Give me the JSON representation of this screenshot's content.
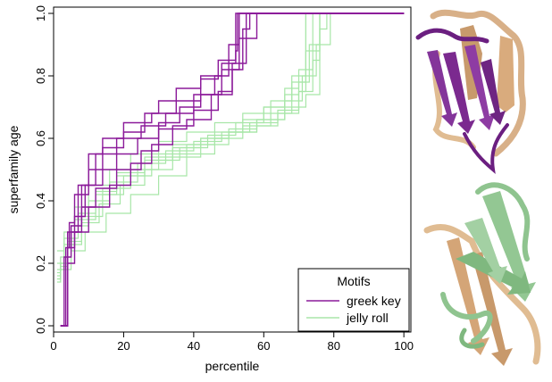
{
  "chart_data": {
    "type": "line",
    "step": true,
    "xlabel": "percentile",
    "ylabel": "superfamily age",
    "xlim": [
      0,
      102
    ],
    "ylim": [
      -0.02,
      1.02
    ],
    "x_ticks": [
      0,
      20,
      40,
      60,
      80,
      100
    ],
    "y_ticks": [
      "0.0",
      "0.2",
      "0.4",
      "0.6",
      "0.8",
      "1.0"
    ],
    "grid": false,
    "legend": {
      "title": "Motifs",
      "placement": "bottom-right",
      "entries": [
        {
          "label": "greek key",
          "color": "#8b1a9a"
        },
        {
          "label": "jelly roll",
          "color": "#a8e6a8"
        }
      ]
    },
    "series": [
      {
        "group": "greek key",
        "color": "#8b1a9a",
        "x": [
          2,
          4,
          4.5,
          6,
          10,
          14,
          20,
          28,
          35,
          42,
          47,
          52,
          52.5,
          100
        ],
        "y": [
          0.0,
          0.25,
          0.33,
          0.42,
          0.55,
          0.6,
          0.65,
          0.68,
          0.72,
          0.79,
          0.85,
          0.88,
          1.0,
          1.0
        ]
      },
      {
        "group": "greek key",
        "color": "#8b1a9a",
        "x": [
          2,
          3,
          5,
          8,
          12,
          18,
          25,
          32,
          40,
          46,
          50,
          53,
          100
        ],
        "y": [
          0.0,
          0.22,
          0.3,
          0.45,
          0.55,
          0.6,
          0.64,
          0.68,
          0.74,
          0.8,
          0.9,
          1.0,
          1.0
        ]
      },
      {
        "group": "greek key",
        "color": "#8b1a9a",
        "x": [
          2,
          4,
          6,
          10,
          16,
          22,
          28,
          34,
          40,
          47,
          51,
          54,
          56,
          100
        ],
        "y": [
          0.0,
          0.2,
          0.3,
          0.38,
          0.45,
          0.52,
          0.58,
          0.64,
          0.69,
          0.75,
          0.82,
          0.95,
          1.0,
          1.0
        ]
      },
      {
        "group": "greek key",
        "color": "#8b1a9a",
        "x": [
          2,
          3.5,
          5,
          8,
          12,
          18,
          25,
          30,
          38,
          45,
          51,
          55,
          100
        ],
        "y": [
          0.0,
          0.25,
          0.32,
          0.38,
          0.44,
          0.5,
          0.56,
          0.63,
          0.66,
          0.74,
          0.84,
          1.0,
          1.0
        ]
      },
      {
        "group": "greek key",
        "color": "#8b1a9a",
        "x": [
          2,
          4,
          7,
          10,
          14,
          20,
          26,
          30,
          35,
          42,
          48,
          52,
          100
        ],
        "y": [
          0.0,
          0.3,
          0.45,
          0.5,
          0.57,
          0.62,
          0.68,
          0.72,
          0.76,
          0.8,
          0.84,
          1.0,
          1.0
        ]
      },
      {
        "group": "greek key",
        "color": "#8b1a9a",
        "x": [
          2,
          4,
          6,
          9,
          14,
          18,
          24,
          30,
          36,
          42,
          48,
          53,
          58,
          76,
          100
        ],
        "y": [
          0.0,
          0.25,
          0.35,
          0.45,
          0.5,
          0.55,
          0.6,
          0.65,
          0.7,
          0.74,
          0.82,
          0.92,
          1.0,
          1.0,
          1.0
        ]
      },
      {
        "group": "jelly roll",
        "color": "#a8e6a8",
        "x": [
          1,
          2,
          4,
          8,
          14,
          22,
          30,
          38,
          46,
          54,
          60,
          66,
          70,
          73,
          76,
          100
        ],
        "y": [
          0.15,
          0.2,
          0.3,
          0.38,
          0.44,
          0.5,
          0.55,
          0.58,
          0.62,
          0.66,
          0.7,
          0.74,
          0.78,
          0.9,
          1.0,
          1.0
        ]
      },
      {
        "group": "jelly roll",
        "color": "#a8e6a8",
        "x": [
          1,
          2,
          5,
          10,
          16,
          24,
          32,
          40,
          48,
          56,
          64,
          70,
          74,
          76,
          78,
          100
        ],
        "y": [
          0.17,
          0.22,
          0.32,
          0.4,
          0.46,
          0.52,
          0.56,
          0.59,
          0.62,
          0.65,
          0.69,
          0.75,
          0.85,
          0.95,
          1.0,
          1.0
        ]
      },
      {
        "group": "jelly roll",
        "color": "#a8e6a8",
        "x": [
          1,
          3,
          6,
          12,
          18,
          26,
          34,
          42,
          50,
          58,
          64,
          68,
          72,
          100
        ],
        "y": [
          0.2,
          0.26,
          0.34,
          0.42,
          0.48,
          0.54,
          0.58,
          0.6,
          0.62,
          0.64,
          0.68,
          0.8,
          1.0,
          1.0
        ]
      },
      {
        "group": "jelly roll",
        "color": "#a8e6a8",
        "x": [
          1,
          2,
          4,
          8,
          14,
          20,
          28,
          36,
          44,
          52,
          60,
          66,
          70,
          74,
          100
        ],
        "y": [
          0.14,
          0.19,
          0.26,
          0.35,
          0.42,
          0.48,
          0.53,
          0.57,
          0.61,
          0.65,
          0.7,
          0.76,
          0.82,
          1.0,
          1.0
        ]
      },
      {
        "group": "jelly roll",
        "color": "#a8e6a8",
        "x": [
          1,
          3,
          6,
          10,
          16,
          22,
          30,
          38,
          46,
          54,
          62,
          68,
          72,
          76,
          100
        ],
        "y": [
          0.24,
          0.3,
          0.38,
          0.45,
          0.5,
          0.55,
          0.59,
          0.62,
          0.65,
          0.68,
          0.72,
          0.78,
          0.88,
          1.0,
          1.0
        ]
      },
      {
        "group": "jelly roll",
        "color": "#a8e6a8",
        "x": [
          1,
          2,
          5,
          9,
          15,
          22,
          30,
          38,
          46,
          54,
          62,
          70,
          72,
          100
        ],
        "y": [
          0.15,
          0.18,
          0.24,
          0.3,
          0.36,
          0.42,
          0.48,
          0.55,
          0.6,
          0.64,
          0.68,
          0.75,
          1.0,
          1.0
        ]
      },
      {
        "group": "jelly roll",
        "color": "#a8e6a8",
        "x": [
          1,
          3,
          7,
          12,
          18,
          26,
          34,
          42,
          50,
          58,
          66,
          72,
          76,
          100
        ],
        "y": [
          0.18,
          0.28,
          0.36,
          0.43,
          0.49,
          0.53,
          0.57,
          0.6,
          0.63,
          0.66,
          0.7,
          0.74,
          1.0,
          1.0
        ]
      },
      {
        "group": "jelly roll",
        "color": "#a8e6a8",
        "x": [
          1,
          2,
          4,
          8,
          13,
          19,
          26,
          34,
          42,
          50,
          58,
          66,
          71,
          75,
          79,
          100
        ],
        "y": [
          0.16,
          0.2,
          0.27,
          0.33,
          0.39,
          0.45,
          0.5,
          0.54,
          0.58,
          0.62,
          0.66,
          0.72,
          0.8,
          0.9,
          1.0,
          1.0
        ]
      }
    ]
  },
  "images": {
    "top": {
      "description_icon": "protein-structure-greek-key",
      "highlight_color": "#7b2a8f",
      "base_color": "#e0bc92"
    },
    "bottom": {
      "description_icon": "protein-structure-jelly-roll",
      "highlight_color": "#8fc48f",
      "base_color": "#e0bc92"
    }
  }
}
